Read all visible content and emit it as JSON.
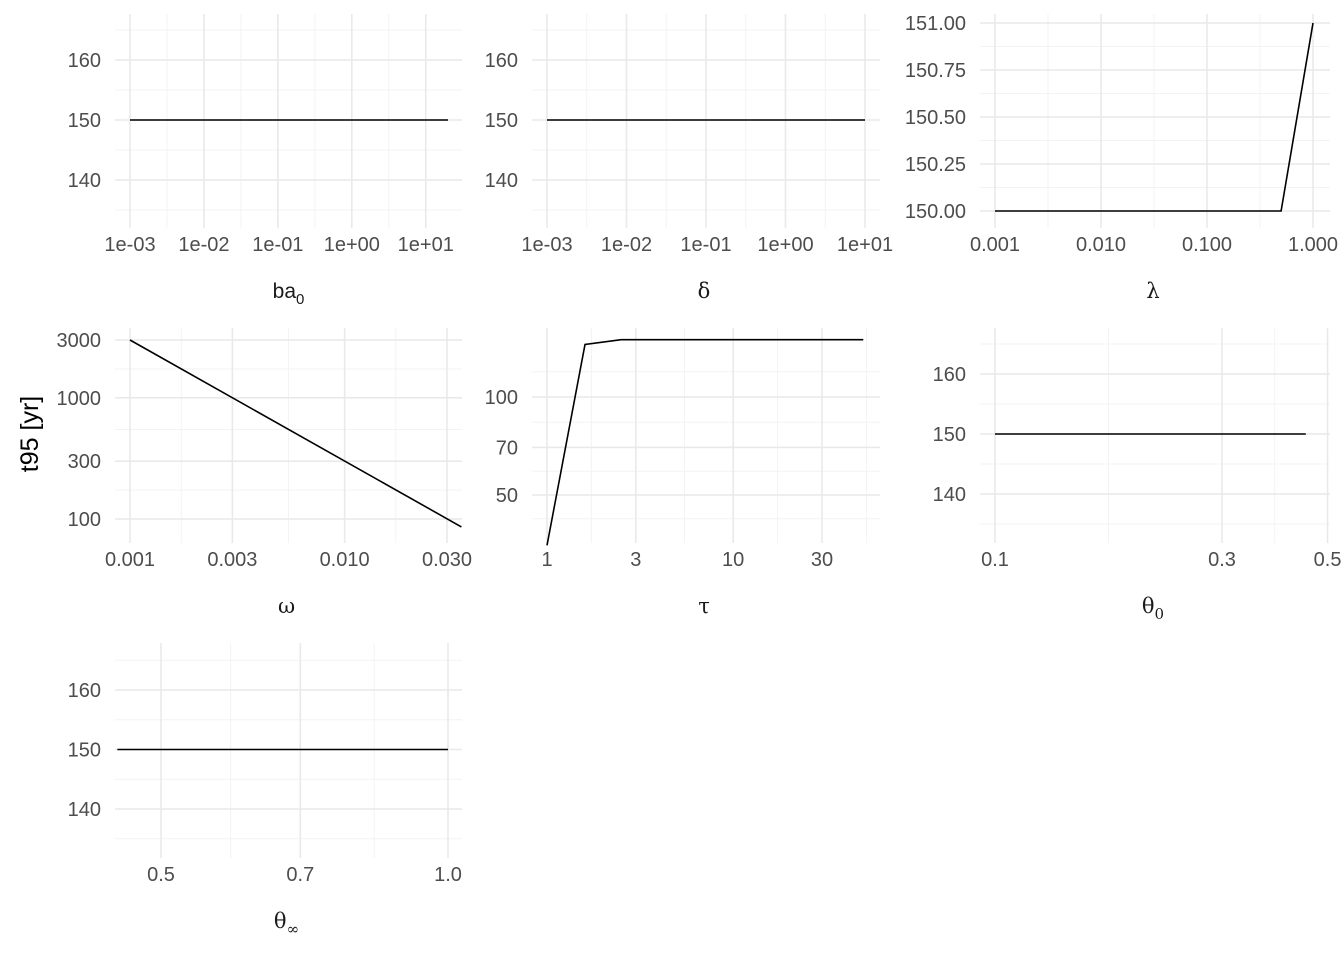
{
  "ylabel": "t95 [yr]",
  "chart_data": [
    {
      "type": "line",
      "xlabel": {
        "base": "ba",
        "sub": "0"
      },
      "xscale": "log",
      "yscale": "linear",
      "xlim": [
        0.001,
        20
      ],
      "ylim": [
        135.8,
        165.7
      ],
      "xticks": [
        0.001,
        0.01,
        0.1,
        1,
        10
      ],
      "xticklabels": [
        "1e-03",
        "1e-02",
        "1e-01",
        "1e+00",
        "1e+01"
      ],
      "yticks": [
        140,
        150,
        160
      ],
      "yticklabels": [
        "140",
        "150",
        "160"
      ],
      "x": [
        0.001,
        20
      ],
      "y": [
        150,
        150
      ],
      "grid": true
    },
    {
      "type": "line",
      "xlabel": {
        "base": "δ",
        "sub": ""
      },
      "xscale": "log",
      "yscale": "linear",
      "xlim": [
        0.001,
        10
      ],
      "ylim": [
        135.8,
        165.7
      ],
      "xticks": [
        0.001,
        0.01,
        0.1,
        1,
        10
      ],
      "xticklabels": [
        "1e-03",
        "1e-02",
        "1e-01",
        "1e+00",
        "1e+01"
      ],
      "yticks": [
        140,
        150,
        160
      ],
      "yticklabels": [
        "140",
        "150",
        "160"
      ],
      "x": [
        0.001,
        10
      ],
      "y": [
        150,
        150
      ],
      "grid": true
    },
    {
      "type": "line",
      "xlabel": {
        "base": "λ",
        "sub": ""
      },
      "xscale": "log",
      "yscale": "linear",
      "xlim": [
        0.001,
        1
      ],
      "ylim": [
        150,
        151
      ],
      "xticks": [
        0.001,
        0.01,
        0.1,
        1
      ],
      "xticklabels": [
        "0.001",
        "0.010",
        "0.100",
        "1.000"
      ],
      "yticks": [
        150,
        150.25,
        150.5,
        150.75,
        151
      ],
      "yticklabels": [
        "150.00",
        "150.25",
        "150.50",
        "150.75",
        "151.00"
      ],
      "x": [
        0.001,
        0.5,
        1
      ],
      "y": [
        150,
        150,
        151
      ],
      "grid": true
    },
    {
      "type": "line",
      "xlabel": {
        "base": "ω",
        "sub": ""
      },
      "xscale": "log",
      "yscale": "log",
      "xlim": [
        0.001,
        0.035
      ],
      "ylim": [
        86,
        3000
      ],
      "xticks": [
        0.001,
        0.003,
        0.01,
        0.03
      ],
      "xticklabels": [
        "0.001",
        "0.003",
        "0.010",
        "0.030"
      ],
      "yticks": [
        100,
        300,
        1000,
        3000
      ],
      "yticklabels": [
        "100",
        "300",
        "1000",
        "3000"
      ],
      "x": [
        0.001,
        0.035
      ],
      "y": [
        3000,
        86
      ],
      "grid": true
    },
    {
      "type": "line",
      "xlabel": {
        "base": "τ",
        "sub": ""
      },
      "xscale": "log",
      "yscale": "log",
      "xlim": [
        1,
        50
      ],
      "ylim": [
        35,
        150
      ],
      "xticks": [
        1,
        3,
        10,
        30
      ],
      "xticklabels": [
        "1",
        "3",
        "10",
        "30"
      ],
      "yticks": [
        50,
        70,
        100
      ],
      "yticklabels": [
        "50",
        "70",
        "100"
      ],
      "x": [
        1,
        1.6,
        2.5,
        50
      ],
      "y": [
        35,
        145,
        150,
        150
      ],
      "grid": true
    },
    {
      "type": "line",
      "xlabel": {
        "base": "θ",
        "sub": "0"
      },
      "xscale": "log",
      "yscale": "linear",
      "xlim": [
        0.1,
        0.45
      ],
      "ylim": [
        135.8,
        165.7
      ],
      "xticks": [
        0.1,
        0.3,
        0.5
      ],
      "xticklabels": [
        "0.1",
        "0.3",
        "0.5"
      ],
      "yticks": [
        140,
        150,
        160
      ],
      "yticklabels": [
        "140",
        "150",
        "160"
      ],
      "x": [
        0.1,
        0.45
      ],
      "y": [
        150,
        150
      ],
      "grid": true
    },
    {
      "type": "line",
      "xlabel": {
        "base": "θ",
        "sub": "∞"
      },
      "xscale": "log",
      "yscale": "linear",
      "xlim": [
        0.45,
        1
      ],
      "ylim": [
        135.8,
        165.7
      ],
      "xticks": [
        0.5,
        0.7,
        1
      ],
      "xticklabels": [
        "0.5",
        "0.7",
        "1.0"
      ],
      "yticks": [
        140,
        150,
        160
      ],
      "yticklabels": [
        "140",
        "150",
        "160"
      ],
      "x": [
        0.45,
        1
      ],
      "y": [
        150,
        150
      ],
      "grid": true
    }
  ]
}
